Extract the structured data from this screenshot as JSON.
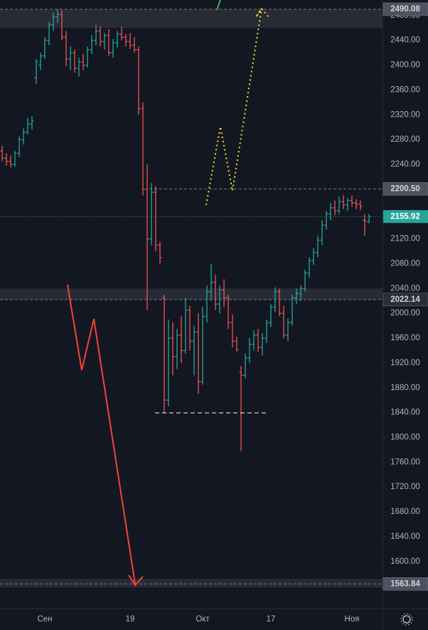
{
  "chart_data": {
    "type": "ohlc",
    "categories": [
      null,
      null,
      null,
      null,
      null,
      null,
      null,
      null,
      null,
      null,
      "Сен",
      null,
      null,
      null,
      null,
      null,
      null,
      null,
      null,
      null,
      null,
      null,
      null,
      null,
      null,
      null,
      null,
      null,
      null,
      null,
      "19",
      null,
      null,
      null,
      null,
      null,
      null,
      null,
      null,
      null,
      null,
      null,
      null,
      null,
      null,
      null,
      null,
      "Окт",
      null,
      null,
      null,
      null,
      null,
      null,
      null,
      null,
      null,
      null,
      null,
      null,
      null,
      null,
      null,
      "17",
      null,
      null,
      null,
      null,
      null,
      null,
      null,
      null,
      null,
      null,
      null,
      null,
      null,
      null,
      null,
      null,
      null,
      null,
      "Ноя",
      null,
      null,
      null,
      null
    ],
    "series": [
      {
        "up_color": "#26a69a",
        "down_color": "#ef5350",
        "open": [
          2262,
          2250,
          2245,
          2240,
          2258,
          2280,
          2292,
          2305,
          2380,
          2400,
          2415,
          2440,
          2465,
          2478,
          2482,
          2445,
          2410,
          2420,
          2395,
          2405,
          2400,
          2425,
          2440,
          2455,
          2438,
          2448,
          2420,
          2436,
          2450,
          2445,
          2438,
          2432,
          2425,
          2330,
          2200,
          2120,
          2195,
          2110,
          2025,
          1860,
          1960,
          1930,
          1965,
          1940,
          2005,
          1955,
          1970,
          1890,
          1995,
          2035,
          2050,
          2015,
          2038,
          2025,
          1985,
          1955,
          1905,
          1900,
          1928,
          1950,
          1965,
          1945,
          1960,
          1985,
          2010,
          2035,
          2000,
          1965,
          1985,
          2025,
          2032,
          2040,
          2065,
          2085,
          2098,
          2118,
          2142,
          2160,
          2170,
          2165,
          2180,
          2175,
          2182,
          2178,
          2176,
          2150,
          2148
        ],
        "high": [
          2270,
          2258,
          2255,
          2262,
          2285,
          2298,
          2315,
          2318,
          2410,
          2420,
          2445,
          2470,
          2485,
          2490,
          2488,
          2455,
          2430,
          2425,
          2412,
          2418,
          2430,
          2448,
          2465,
          2462,
          2452,
          2458,
          2442,
          2455,
          2462,
          2450,
          2452,
          2445,
          2430,
          2340,
          2240,
          2210,
          2205,
          2115,
          2030,
          1990,
          1985,
          1975,
          1995,
          2025,
          2012,
          1980,
          2000,
          2010,
          2045,
          2080,
          2062,
          2045,
          2055,
          2030,
          1998,
          1962,
          1915,
          1935,
          1960,
          1972,
          1975,
          1968,
          1990,
          2015,
          2042,
          2040,
          2012,
          1992,
          2030,
          2040,
          2045,
          2070,
          2090,
          2105,
          2125,
          2150,
          2165,
          2178,
          2182,
          2188,
          2190,
          2186,
          2190,
          2184,
          2182,
          2160,
          2160
        ],
        "low": [
          2245,
          2238,
          2235,
          2236,
          2252,
          2272,
          2288,
          2296,
          2370,
          2392,
          2410,
          2432,
          2455,
          2468,
          2440,
          2398,
          2392,
          2388,
          2382,
          2392,
          2396,
          2418,
          2432,
          2430,
          2425,
          2415,
          2412,
          2428,
          2440,
          2430,
          2426,
          2420,
          2320,
          2190,
          2005,
          2110,
          2100,
          2080,
          1840,
          1850,
          1900,
          1910,
          1920,
          1935,
          1940,
          1900,
          1870,
          1885,
          1985,
          2020,
          2005,
          2000,
          2010,
          1975,
          1945,
          1938,
          1778,
          1895,
          1920,
          1940,
          1938,
          1932,
          1952,
          1978,
          2002,
          1995,
          1960,
          1955,
          1980,
          2015,
          2020,
          2035,
          2058,
          2078,
          2090,
          2110,
          2135,
          2150,
          2158,
          2160,
          2168,
          2165,
          2172,
          2168,
          2166,
          2125,
          2145
        ],
        "close": [
          2250,
          2245,
          2240,
          2258,
          2280,
          2292,
          2305,
          2310,
          2405,
          2415,
          2440,
          2465,
          2478,
          2482,
          2445,
          2410,
          2420,
          2395,
          2405,
          2400,
          2425,
          2440,
          2455,
          2438,
          2448,
          2420,
          2436,
          2450,
          2445,
          2438,
          2432,
          2425,
          2330,
          2200,
          2120,
          2195,
          2110,
          2090,
          1860,
          1960,
          1930,
          1965,
          1940,
          2005,
          1955,
          1970,
          1890,
          1995,
          2035,
          2050,
          2015,
          2038,
          2025,
          1985,
          1955,
          1942,
          1900,
          1928,
          1950,
          1965,
          1945,
          1960,
          1985,
          2010,
          2035,
          2000,
          1965,
          1985,
          2025,
          2032,
          2040,
          2065,
          2085,
          2098,
          2118,
          2142,
          2160,
          2170,
          2165,
          2180,
          2175,
          2182,
          2178,
          2176,
          2172,
          2148,
          2156
        ]
      }
    ],
    "ylim": [
      1524,
      2505
    ],
    "yticks": [
      {
        "value": 1600,
        "label": "1600.00"
      },
      {
        "value": 1640,
        "label": "1640.00"
      },
      {
        "value": 1680,
        "label": "1680.00"
      },
      {
        "value": 1720,
        "label": "1720.00"
      },
      {
        "value": 1760,
        "label": "1760.00"
      },
      {
        "value": 1800,
        "label": "1800.00"
      },
      {
        "value": 1840,
        "label": "1840.00"
      },
      {
        "value": 1880,
        "label": "1880.00"
      },
      {
        "value": 1920,
        "label": "1920.00"
      },
      {
        "value": 1960,
        "label": "1960.00"
      },
      {
        "value": 2000,
        "label": "2000.00"
      },
      {
        "value": 2040,
        "label": "2040.00"
      },
      {
        "value": 2080,
        "label": "2080.00"
      },
      {
        "value": 2120,
        "label": "2120.00"
      },
      {
        "value": 2160,
        "label": "2160.00"
      },
      {
        "value": 2200,
        "label": "2200.00"
      },
      {
        "value": 2240,
        "label": "2240.00"
      },
      {
        "value": 2280,
        "label": "2280.00"
      },
      {
        "value": 2320,
        "label": "2320.00"
      },
      {
        "value": 2360,
        "label": "2360.00"
      },
      {
        "value": 2400,
        "label": "2400.00"
      },
      {
        "value": 2440,
        "label": "2440.00"
      },
      {
        "value": 2480,
        "label": "2480.00"
      }
    ],
    "levels": [
      {
        "value": 2490.08,
        "color": "#4c525e"
      },
      {
        "value": 2200.5,
        "label": "2200.50",
        "color": "#4c525e"
      },
      {
        "value": 2155.92,
        "color": "#26a69a"
      },
      {
        "value": 2022.14,
        "color": "#2a2e39"
      },
      {
        "value": 1563.84,
        "color": "#4c525e"
      }
    ],
    "zones": [
      [
        2460,
        2490
      ],
      [
        2022,
        2040
      ],
      [
        1558,
        1572
      ]
    ]
  }
}
